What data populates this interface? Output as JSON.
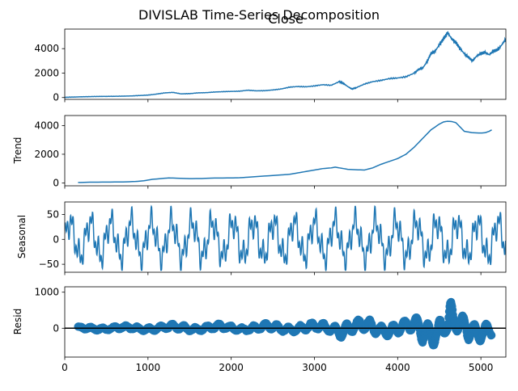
{
  "figure": {
    "suptitle": "DIVISLAB Time-Series Decomposition",
    "line_color": "#1f77b4"
  },
  "chart_data": [
    {
      "type": "line",
      "title": "Close",
      "ylabel": "",
      "xlim": [
        0,
        5300
      ],
      "ylim": [
        -150,
        5600
      ],
      "x_ticks": [
        0,
        1000,
        2000,
        3000,
        4000,
        5000
      ],
      "y_ticks": [
        0,
        2000,
        4000
      ],
      "y_tick_labels": [
        "0",
        "2000",
        "4000"
      ],
      "x": [
        0,
        200,
        400,
        600,
        800,
        1000,
        1100,
        1200,
        1300,
        1400,
        1500,
        1600,
        1700,
        1800,
        1900,
        2000,
        2100,
        2200,
        2300,
        2400,
        2500,
        2600,
        2700,
        2800,
        2900,
        3000,
        3100,
        3200,
        3300,
        3350,
        3400,
        3450,
        3500,
        3600,
        3700,
        3800,
        3900,
        4000,
        4100,
        4200,
        4250,
        4300,
        4350,
        4400,
        4450,
        4500,
        4550,
        4600,
        4650,
        4700,
        4750,
        4800,
        4850,
        4900,
        4950,
        5000,
        5050,
        5100,
        5150,
        5200,
        5250,
        5300
      ],
      "y": [
        20,
        60,
        90,
        100,
        130,
        200,
        280,
        380,
        420,
        300,
        320,
        380,
        400,
        450,
        480,
        500,
        520,
        600,
        550,
        560,
        620,
        700,
        850,
        900,
        880,
        950,
        1050,
        1000,
        1300,
        1150,
        900,
        700,
        800,
        1100,
        1300,
        1400,
        1550,
        1600,
        1700,
        2000,
        2300,
        2400,
        2900,
        3600,
        3800,
        4300,
        4800,
        5300,
        4800,
        4500,
        4000,
        3600,
        3300,
        3000,
        3400,
        3600,
        3700,
        3500,
        3800,
        3900,
        4300,
        4800
      ]
    },
    {
      "type": "line",
      "title": "",
      "ylabel": "Trend",
      "xlim": [
        0,
        5300
      ],
      "ylim": [
        -200,
        4700
      ],
      "x_ticks": [
        0,
        1000,
        2000,
        3000,
        4000,
        5000
      ],
      "y_ticks": [
        0,
        2000,
        4000
      ],
      "y_tick_labels": [
        "0",
        "2000",
        "4000"
      ],
      "x": [
        160,
        300,
        500,
        700,
        850,
        950,
        1050,
        1150,
        1250,
        1350,
        1500,
        1650,
        1800,
        2000,
        2100,
        2200,
        2400,
        2600,
        2700,
        2800,
        2900,
        3000,
        3100,
        3200,
        3250,
        3300,
        3400,
        3500,
        3600,
        3700,
        3800,
        3900,
        4000,
        4100,
        4200,
        4300,
        4400,
        4500,
        4550,
        4600,
        4650,
        4700,
        4750,
        4800,
        4850,
        4900,
        5000,
        5050,
        5100,
        5130
      ],
      "y": [
        30,
        50,
        60,
        70,
        100,
        150,
        250,
        300,
        350,
        330,
        300,
        310,
        340,
        350,
        360,
        400,
        480,
        560,
        600,
        700,
        800,
        900,
        1000,
        1050,
        1100,
        1050,
        950,
        920,
        900,
        1050,
        1300,
        1500,
        1700,
        2000,
        2500,
        3100,
        3700,
        4100,
        4250,
        4300,
        4280,
        4200,
        3900,
        3600,
        3550,
        3500,
        3480,
        3500,
        3600,
        3700
      ]
    },
    {
      "type": "line",
      "title": "",
      "ylabel": "Seasonal",
      "xlim": [
        0,
        5300
      ],
      "ylim": [
        -66,
        75
      ],
      "x_ticks": [
        0,
        1000,
        2000,
        3000,
        4000,
        5000
      ],
      "y_ticks": [
        -50,
        0,
        50
      ],
      "y_tick_labels": [
        "−50",
        "0",
        "50"
      ],
      "amplitude_approx": 62,
      "period_approx": 245
    },
    {
      "type": "scatter",
      "title": "",
      "ylabel": "Resid",
      "xlim": [
        0,
        5300
      ],
      "ylim": [
        -800,
        1150
      ],
      "x_ticks": [
        0,
        1000,
        2000,
        3000,
        4000,
        5000
      ],
      "x_tick_labels": [
        "0",
        "1000",
        "2000",
        "3000",
        "4000",
        "5000"
      ],
      "y_ticks": [
        0,
        1000
      ],
      "y_tick_labels": [
        "0",
        "1000"
      ],
      "baseline": 0,
      "x": [
        160,
        500,
        1000,
        1500,
        2000,
        2500,
        3000,
        3200,
        3350,
        3450,
        3600,
        3800,
        4000,
        4150,
        4300,
        4400,
        4500,
        4580,
        4620,
        4700,
        4800,
        4900,
        5000,
        5050,
        5130
      ],
      "envelope": [
        [
          -50,
          50
        ],
        [
          -60,
          60
        ],
        [
          -70,
          80
        ],
        [
          -80,
          140
        ],
        [
          -70,
          120
        ],
        [
          -100,
          150
        ],
        [
          -120,
          160
        ],
        [
          -120,
          200
        ],
        [
          -300,
          400
        ],
        [
          -200,
          200
        ],
        [
          -250,
          300
        ],
        [
          -200,
          250
        ],
        [
          -250,
          250
        ],
        [
          -300,
          200
        ],
        [
          -600,
          500
        ],
        [
          -500,
          450
        ],
        [
          -400,
          700
        ],
        [
          -200,
          1100
        ],
        [
          -100,
          1000
        ],
        [
          -400,
          300
        ],
        [
          -700,
          400
        ],
        [
          -400,
          300
        ],
        [
          -350,
          350
        ],
        [
          -250,
          400
        ],
        [
          -300,
          300
        ]
      ]
    }
  ]
}
